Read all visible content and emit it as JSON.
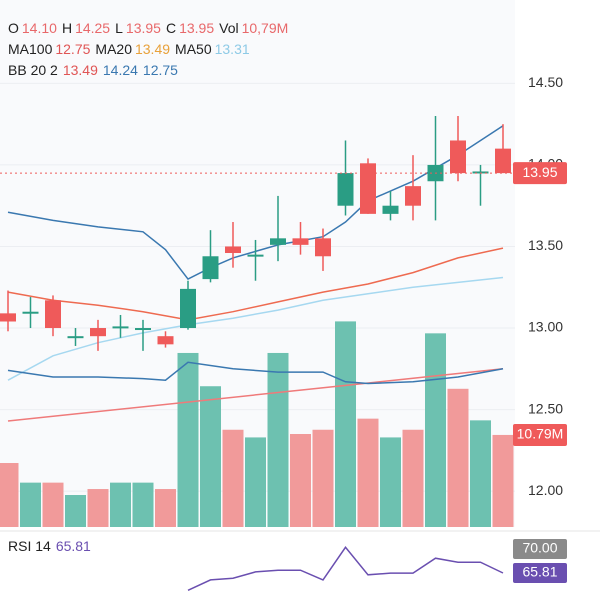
{
  "chart_data": {
    "type": "candlestick",
    "ohlc_legend": {
      "labels": [
        "O",
        "H",
        "L",
        "C",
        "Vol"
      ],
      "values": [
        "14.10",
        "14.25",
        "13.95",
        "13.95",
        "10,79M"
      ],
      "label_color": "#222222",
      "value_color": "#e8686a"
    },
    "open": [
      13.09,
      13.09,
      13.17,
      12.94,
      13.0,
      13.0,
      12.99,
      12.95,
      13.0,
      13.3,
      13.5,
      13.44,
      13.51,
      13.55,
      13.55,
      13.75,
      14.01,
      13.7,
      13.87,
      13.9,
      14.15,
      13.95,
      14.1
    ],
    "high": [
      13.23,
      13.19,
      13.2,
      13.0,
      13.05,
      13.08,
      13.05,
      12.98,
      13.29,
      13.6,
      13.65,
      13.54,
      13.81,
      13.65,
      13.61,
      14.15,
      14.04,
      13.84,
      14.06,
      14.3,
      14.3,
      14.0,
      14.25
    ],
    "low": [
      12.98,
      13.0,
      12.95,
      12.89,
      12.86,
      12.94,
      12.86,
      12.88,
      12.99,
      13.28,
      13.37,
      13.29,
      13.41,
      13.45,
      13.35,
      13.69,
      13.7,
      13.66,
      13.66,
      13.66,
      13.9,
      13.75,
      13.95
    ],
    "close": [
      13.04,
      13.1,
      13.0,
      12.95,
      12.95,
      13.01,
      13.0,
      12.9,
      13.24,
      13.44,
      13.46,
      13.45,
      13.55,
      13.51,
      13.44,
      13.95,
      13.7,
      13.75,
      13.75,
      14.0,
      13.95,
      13.96,
      13.95
    ],
    "up_color": "#2a9d84",
    "down_color": "#ef5a5a",
    "volume": [
      7.5,
      5.2,
      5.2,
      3.75,
      4.45,
      5.2,
      5.2,
      4.45,
      20.4,
      16.5,
      11.4,
      10.5,
      20.4,
      10.9,
      11.4,
      24.1,
      12.7,
      10.5,
      11.4,
      22.7,
      16.2,
      12.5,
      10.79
    ],
    "volume_up_color": "#6dc1b0",
    "volume_down_color": "#f19a9a",
    "volume_lim": [
      0,
      60.6
    ],
    "ylim": [
      11.78,
      14.95
    ],
    "yticks": [
      {
        "value": 12,
        "label": "12.00"
      },
      {
        "value": 12.5,
        "label": "12.50"
      },
      {
        "value": 13,
        "label": "13.00"
      },
      {
        "value": 13.5,
        "label": "13.50"
      },
      {
        "value": 14,
        "label": "14.00"
      },
      {
        "value": 14.5,
        "label": "14.50"
      }
    ],
    "grid": true,
    "last_price": {
      "value": 13.95,
      "label": "13.95",
      "color": "#ef5a5a"
    },
    "last_volume": {
      "value": 10.79,
      "label": "10.79M",
      "color": "#ef5a5a"
    },
    "series": [
      {
        "name": "MA100",
        "value_label": "12.75",
        "color": "#ef7a7a",
        "label_color": "#e05555",
        "x": [
          0,
          22
        ],
        "values": [
          12.43,
          12.75
        ]
      },
      {
        "name": "MA20",
        "value_label": "13.49",
        "color": "#ee6a50",
        "label_color": "#e8a13a",
        "x": [
          0,
          2,
          4,
          6,
          8,
          10,
          12,
          14,
          16,
          18,
          20,
          22
        ],
        "values": [
          13.22,
          13.17,
          13.14,
          13.1,
          13.05,
          13.1,
          13.16,
          13.22,
          13.27,
          13.34,
          13.43,
          13.49
        ]
      },
      {
        "name": "MA50",
        "value_label": "13.31",
        "color": "#a6d8f0",
        "label_color": "#8ecae6",
        "x": [
          0,
          2,
          4,
          6,
          8,
          10,
          12,
          14,
          16,
          18,
          20,
          22
        ],
        "values": [
          12.68,
          12.83,
          12.91,
          12.97,
          13.02,
          13.06,
          13.11,
          13.17,
          13.21,
          13.25,
          13.28,
          13.31
        ]
      }
    ],
    "bollinger": {
      "name": "BB 20 2",
      "middle_label": "13.49",
      "upper_label": "14.24",
      "lower_label": "12.75",
      "middle_color": "#e05555",
      "color": "#3a78b0",
      "upper": {
        "x": [
          0,
          2,
          4,
          6,
          7,
          8,
          9,
          10,
          12,
          14,
          15,
          16,
          18,
          20,
          22
        ],
        "values": [
          13.71,
          13.66,
          13.62,
          13.59,
          13.48,
          13.3,
          13.37,
          13.43,
          13.51,
          13.56,
          13.65,
          13.78,
          13.9,
          14.06,
          14.24
        ]
      },
      "lower": {
        "x": [
          0,
          2,
          4,
          6,
          7,
          8,
          10,
          12,
          14,
          15,
          16,
          18,
          20,
          22
        ],
        "values": [
          12.74,
          12.7,
          12.7,
          12.69,
          12.68,
          12.79,
          12.75,
          12.73,
          12.73,
          12.67,
          12.66,
          12.67,
          12.7,
          12.75
        ]
      }
    },
    "rsi": {
      "name": "RSI 14",
      "value_label": "65.81",
      "color": "#6a4fb0",
      "ylim": [
        61.1,
        71.92
      ],
      "level": {
        "value": 70,
        "label": "70.00"
      },
      "level_color": "#8a8a8a",
      "x": [
        8,
        9,
        10,
        11,
        12,
        13,
        14,
        15,
        16,
        17,
        18,
        19,
        20,
        21,
        22
      ],
      "values": [
        62.8,
        64.6,
        64.9,
        66.0,
        66.3,
        66.3,
        64.6,
        70.3,
        65.5,
        65.8,
        65.8,
        68.4,
        67.7,
        67.7,
        65.81
      ]
    }
  }
}
